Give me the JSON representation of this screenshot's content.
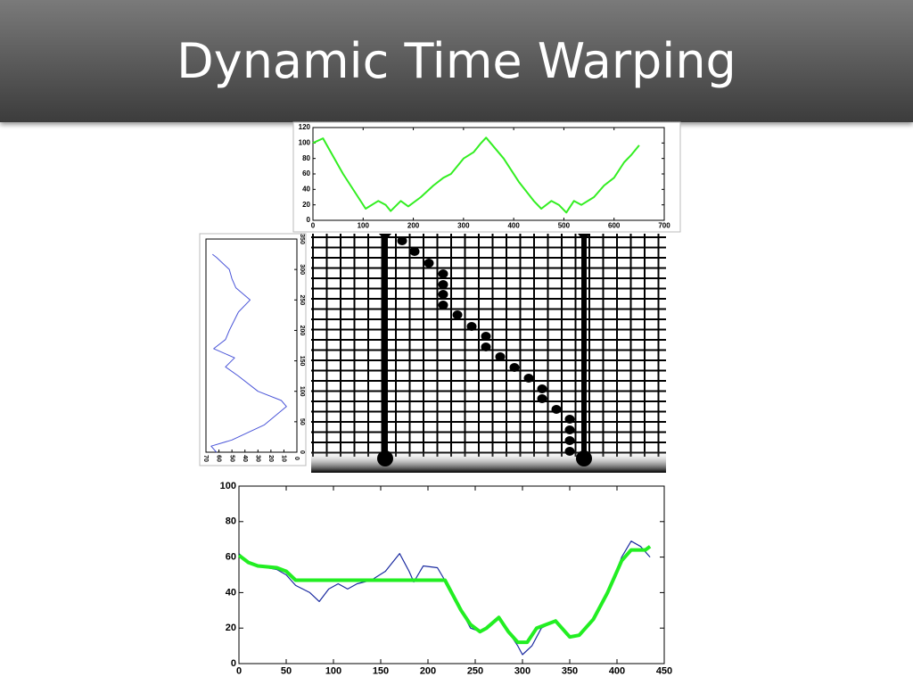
{
  "title": "Dynamic Time Warping",
  "chart_data": [
    {
      "type": "line",
      "xlim": [
        0,
        700
      ],
      "ylim": [
        0,
        120
      ],
      "xticks": [
        0,
        100,
        200,
        300,
        400,
        500,
        600,
        700
      ],
      "yticks": [
        0,
        20,
        40,
        60,
        80,
        100,
        120
      ],
      "series": [
        {
          "color": "#33ee22",
          "x": [
            0,
            20,
            60,
            105,
            130,
            145,
            155,
            175,
            190,
            215,
            240,
            260,
            275,
            300,
            320,
            335,
            345,
            380,
            410,
            440,
            455,
            475,
            490,
            505,
            520,
            535,
            560,
            580,
            600,
            620,
            635,
            650
          ],
          "values": [
            100,
            106,
            60,
            15,
            25,
            20,
            12,
            25,
            18,
            30,
            45,
            55,
            60,
            80,
            88,
            100,
            107,
            80,
            50,
            25,
            15,
            25,
            20,
            10,
            25,
            20,
            30,
            45,
            55,
            75,
            85,
            97
          ]
        }
      ]
    },
    {
      "type": "line",
      "rotated": true,
      "xlim": [
        0,
        350
      ],
      "ylim": [
        70,
        0
      ],
      "xticks": [
        0,
        50,
        100,
        150,
        200,
        250,
        300,
        350
      ],
      "yticks": [
        70,
        60,
        50,
        40,
        30,
        20,
        10,
        0
      ],
      "series": [
        {
          "color": "#4a55d8",
          "x": [
            0,
            10,
            20,
            45,
            75,
            85,
            100,
            125,
            140,
            155,
            170,
            185,
            200,
            230,
            250,
            270,
            285,
            300,
            320,
            325
          ],
          "values": [
            62,
            66,
            50,
            25,
            8,
            12,
            30,
            45,
            55,
            48,
            64,
            55,
            52,
            45,
            36,
            47,
            50,
            52,
            62,
            65
          ]
        }
      ]
    },
    {
      "type": "line",
      "xlim": [
        0,
        450
      ],
      "ylim": [
        0,
        100
      ],
      "xticks": [
        0,
        50,
        100,
        150,
        200,
        250,
        300,
        350,
        400,
        450
      ],
      "yticks": [
        0,
        20,
        40,
        60,
        80,
        100
      ],
      "series": [
        {
          "color": "#1a2aa0",
          "x": [
            0,
            10,
            20,
            40,
            50,
            60,
            75,
            85,
            95,
            105,
            115,
            125,
            140,
            155,
            170,
            180,
            185,
            195,
            210,
            220,
            230,
            245,
            255,
            262,
            275,
            285,
            295,
            300,
            310,
            320,
            335,
            350,
            360,
            375,
            390,
            405,
            415,
            425,
            435
          ],
          "values": [
            62,
            57,
            55,
            53,
            50,
            44,
            40,
            35,
            42,
            45,
            42,
            45,
            47,
            52,
            62,
            52,
            46,
            55,
            54,
            45,
            35,
            20,
            18,
            20,
            26,
            18,
            10,
            5,
            10,
            20,
            24,
            15,
            16,
            25,
            40,
            60,
            69,
            66,
            60
          ]
        },
        {
          "color": "#22ee22",
          "x": [
            0,
            10,
            20,
            40,
            50,
            60,
            100,
            150,
            200,
            218,
            225,
            235,
            245,
            255,
            262,
            275,
            285,
            295,
            305,
            315,
            335,
            350,
            360,
            375,
            390,
            405,
            415,
            430,
            435
          ],
          "values": [
            61,
            57,
            55,
            54,
            52,
            47,
            47,
            47,
            47,
            47,
            40,
            30,
            22,
            18,
            20,
            26,
            18,
            12,
            12,
            20,
            24,
            15,
            16,
            25,
            40,
            58,
            64,
            64,
            66
          ]
        }
      ]
    }
  ]
}
